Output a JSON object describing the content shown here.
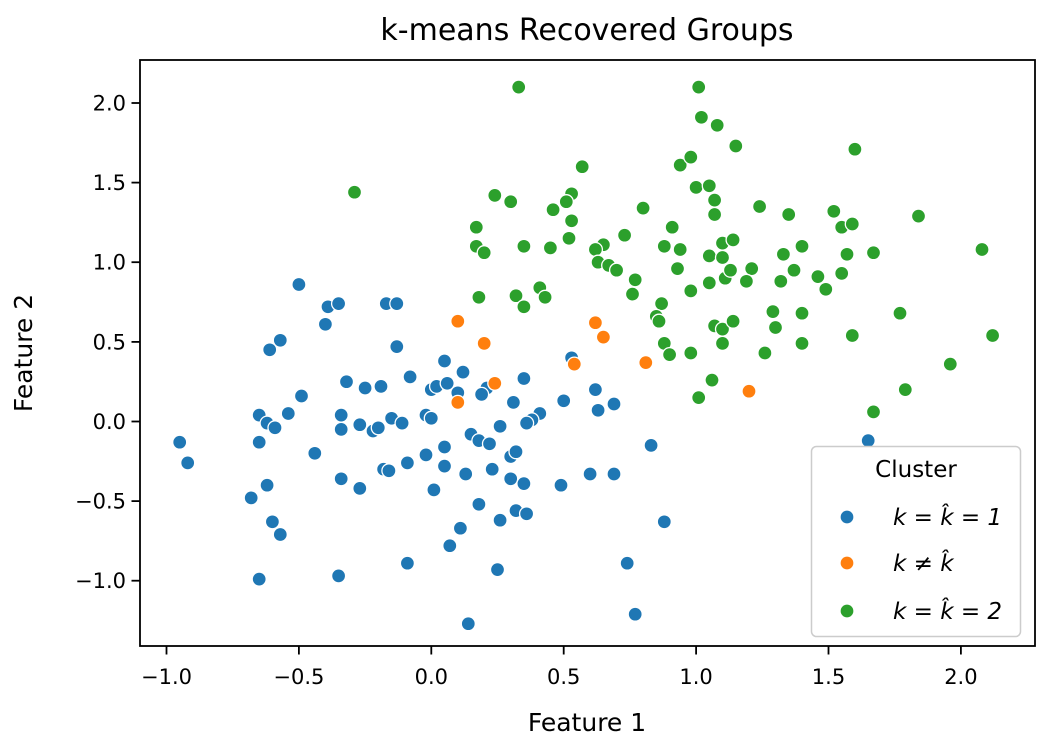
{
  "figure": {
    "background": "#ffffff"
  },
  "chart_data": {
    "type": "scatter",
    "title": "k-means Recovered Groups",
    "xlabel": "Feature 1",
    "ylabel": "Feature 2",
    "xlim": [
      -1.1,
      2.28
    ],
    "ylim": [
      -1.41,
      2.27
    ],
    "xticks": [
      -1.0,
      -0.5,
      0.0,
      0.5,
      1.0,
      1.5,
      2.0
    ],
    "yticks": [
      -1.0,
      -0.5,
      0.0,
      0.5,
      1.0,
      1.5,
      2.0
    ],
    "grid": false,
    "marker_edge_color": "#ffffff",
    "legend": {
      "title": "Cluster",
      "position": "lower right",
      "entries": [
        {
          "label": "k = k̂ = 1",
          "color": "#1f77b4"
        },
        {
          "label": "k ≠ k̂",
          "color": "#ff7f0e"
        },
        {
          "label": "k = k̂ = 2",
          "color": "#2ca02c"
        }
      ]
    },
    "series": [
      {
        "name": "k = k̂ = 1",
        "color": "#1f77b4",
        "points": [
          [
            -0.95,
            -0.13
          ],
          [
            -0.92,
            -0.26
          ],
          [
            -0.5,
            0.86
          ],
          [
            -0.39,
            0.72
          ],
          [
            -0.35,
            0.74
          ],
          [
            -0.4,
            0.61
          ],
          [
            -0.17,
            0.74
          ],
          [
            -0.13,
            0.74
          ],
          [
            -0.61,
            0.45
          ],
          [
            -0.57,
            0.51
          ],
          [
            -0.13,
            0.47
          ],
          [
            -0.32,
            0.25
          ],
          [
            -0.25,
            0.21
          ],
          [
            -0.19,
            0.22
          ],
          [
            -0.08,
            0.28
          ],
          [
            -0.49,
            0.16
          ],
          [
            -0.65,
            0.04
          ],
          [
            -0.62,
            -0.01
          ],
          [
            -0.59,
            -0.04
          ],
          [
            -0.54,
            0.05
          ],
          [
            -0.34,
            0.04
          ],
          [
            -0.34,
            -0.05
          ],
          [
            -0.27,
            -0.02
          ],
          [
            -0.22,
            -0.06
          ],
          [
            -0.2,
            -0.04
          ],
          [
            -0.15,
            0.02
          ],
          [
            -0.11,
            -0.01
          ],
          [
            -0.02,
            0.04
          ],
          [
            0.0,
            0.02
          ],
          [
            -0.65,
            -0.13
          ],
          [
            -0.44,
            -0.2
          ],
          [
            0.0,
            0.2
          ],
          [
            0.05,
            0.38
          ],
          [
            0.12,
            0.31
          ],
          [
            0.02,
            0.22
          ],
          [
            0.06,
            0.24
          ],
          [
            0.1,
            0.18
          ],
          [
            0.21,
            0.21
          ],
          [
            0.19,
            0.17
          ],
          [
            0.35,
            0.27
          ],
          [
            0.31,
            0.12
          ],
          [
            0.53,
            0.4
          ],
          [
            0.5,
            0.13
          ],
          [
            0.62,
            0.2
          ],
          [
            0.63,
            0.07
          ],
          [
            0.69,
            0.11
          ],
          [
            0.41,
            0.05
          ],
          [
            0.38,
            0.01
          ],
          [
            0.36,
            -0.01
          ],
          [
            0.26,
            -0.03
          ],
          [
            0.15,
            -0.08
          ],
          [
            0.18,
            -0.12
          ],
          [
            0.22,
            -0.14
          ],
          [
            0.05,
            -0.16
          ],
          [
            0.05,
            -0.28
          ],
          [
            0.83,
            -0.15
          ],
          [
            1.65,
            -0.12
          ],
          [
            0.13,
            -0.33
          ],
          [
            0.23,
            -0.3
          ],
          [
            0.3,
            -0.22
          ],
          [
            0.32,
            -0.19
          ],
          [
            0.3,
            -0.36
          ],
          [
            0.35,
            -0.39
          ],
          [
            0.01,
            -0.43
          ],
          [
            0.18,
            -0.52
          ],
          [
            0.26,
            -0.62
          ],
          [
            0.32,
            -0.56
          ],
          [
            0.36,
            -0.58
          ],
          [
            0.11,
            -0.67
          ],
          [
            0.07,
            -0.78
          ],
          [
            0.49,
            -0.4
          ],
          [
            0.6,
            -0.33
          ],
          [
            0.69,
            -0.33
          ],
          [
            0.88,
            -0.63
          ],
          [
            0.74,
            -0.89
          ],
          [
            0.25,
            -0.93
          ],
          [
            0.77,
            -1.21
          ],
          [
            0.14,
            -1.27
          ],
          [
            -0.62,
            -0.4
          ],
          [
            -0.68,
            -0.48
          ],
          [
            -0.34,
            -0.36
          ],
          [
            -0.27,
            -0.42
          ],
          [
            -0.18,
            -0.3
          ],
          [
            -0.16,
            -0.31
          ],
          [
            -0.09,
            -0.26
          ],
          [
            -0.02,
            -0.21
          ],
          [
            -0.6,
            -0.63
          ],
          [
            -0.57,
            -0.71
          ],
          [
            -0.09,
            -0.89
          ],
          [
            -0.65,
            -0.99
          ],
          [
            -0.35,
            -0.97
          ]
        ]
      },
      {
        "name": "k ≠ k̂",
        "color": "#ff7f0e",
        "points": [
          [
            0.1,
            0.63
          ],
          [
            0.2,
            0.49
          ],
          [
            0.62,
            0.62
          ],
          [
            0.65,
            0.53
          ],
          [
            0.54,
            0.36
          ],
          [
            0.81,
            0.37
          ],
          [
            0.24,
            0.24
          ],
          [
            0.1,
            0.12
          ],
          [
            1.2,
            0.19
          ]
        ]
      },
      {
        "name": "k = k̂ = 2",
        "color": "#2ca02c",
        "points": [
          [
            -0.29,
            1.44
          ],
          [
            0.33,
            2.1
          ],
          [
            1.01,
            2.1
          ],
          [
            1.02,
            1.91
          ],
          [
            1.08,
            1.86
          ],
          [
            1.15,
            1.73
          ],
          [
            1.6,
            1.71
          ],
          [
            0.57,
            1.6
          ],
          [
            0.94,
            1.61
          ],
          [
            0.98,
            1.66
          ],
          [
            0.24,
            1.42
          ],
          [
            0.3,
            1.38
          ],
          [
            0.53,
            1.43
          ],
          [
            0.51,
            1.38
          ],
          [
            0.46,
            1.33
          ],
          [
            0.8,
            1.34
          ],
          [
            1.0,
            1.47
          ],
          [
            1.05,
            1.48
          ],
          [
            1.07,
            1.39
          ],
          [
            0.53,
            1.26
          ],
          [
            0.17,
            1.22
          ],
          [
            1.07,
            1.3
          ],
          [
            1.24,
            1.35
          ],
          [
            1.35,
            1.3
          ],
          [
            1.52,
            1.32
          ],
          [
            1.55,
            1.22
          ],
          [
            1.59,
            1.24
          ],
          [
            1.84,
            1.29
          ],
          [
            0.17,
            1.1
          ],
          [
            0.2,
            1.06
          ],
          [
            0.35,
            1.1
          ],
          [
            0.45,
            1.09
          ],
          [
            0.52,
            1.15
          ],
          [
            0.65,
            1.11
          ],
          [
            0.62,
            1.08
          ],
          [
            0.73,
            1.17
          ],
          [
            0.91,
            1.22
          ],
          [
            0.88,
            1.1
          ],
          [
            0.94,
            1.08
          ],
          [
            1.1,
            1.12
          ],
          [
            1.14,
            1.14
          ],
          [
            1.33,
            1.05
          ],
          [
            1.4,
            1.1
          ],
          [
            1.57,
            1.05
          ],
          [
            1.67,
            1.06
          ],
          [
            2.08,
            1.08
          ],
          [
            0.63,
            1.0
          ],
          [
            0.67,
            0.98
          ],
          [
            0.7,
            0.95
          ],
          [
            0.77,
            0.89
          ],
          [
            0.76,
            0.8
          ],
          [
            0.87,
            0.74
          ],
          [
            0.98,
            0.82
          ],
          [
            0.93,
            0.96
          ],
          [
            1.05,
            0.87
          ],
          [
            1.11,
            0.9
          ],
          [
            1.13,
            0.95
          ],
          [
            1.05,
            1.04
          ],
          [
            1.1,
            1.03
          ],
          [
            0.85,
            0.66
          ],
          [
            0.86,
            0.63
          ],
          [
            1.07,
            0.6
          ],
          [
            1.1,
            0.58
          ],
          [
            1.14,
            0.63
          ],
          [
            1.1,
            0.49
          ],
          [
            0.88,
            0.49
          ],
          [
            0.9,
            0.42
          ],
          [
            0.98,
            0.43
          ],
          [
            1.06,
            0.26
          ],
          [
            1.01,
            0.15
          ],
          [
            0.41,
            0.84
          ],
          [
            0.43,
            0.78
          ],
          [
            0.18,
            0.78
          ],
          [
            0.32,
            0.79
          ],
          [
            0.35,
            0.72
          ],
          [
            1.21,
            0.96
          ],
          [
            1.19,
            0.88
          ],
          [
            1.37,
            0.95
          ],
          [
            1.32,
            0.88
          ],
          [
            1.46,
            0.91
          ],
          [
            1.55,
            0.93
          ],
          [
            1.49,
            0.83
          ],
          [
            1.29,
            0.69
          ],
          [
            1.4,
            0.68
          ],
          [
            1.3,
            0.59
          ],
          [
            1.77,
            0.68
          ],
          [
            1.59,
            0.54
          ],
          [
            2.12,
            0.54
          ],
          [
            1.4,
            0.49
          ],
          [
            1.26,
            0.43
          ],
          [
            1.96,
            0.36
          ],
          [
            1.79,
            0.2
          ],
          [
            1.67,
            0.06
          ]
        ]
      }
    ]
  }
}
